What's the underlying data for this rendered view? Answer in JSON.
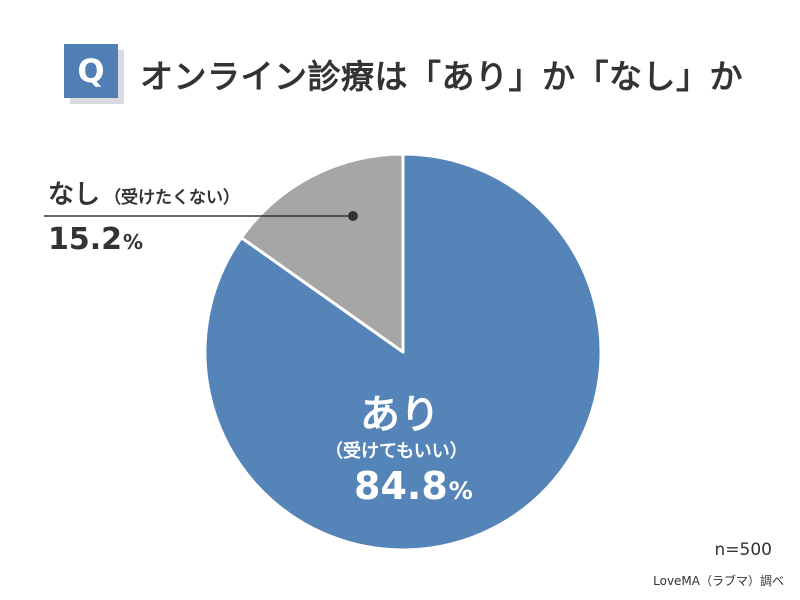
{
  "header": {
    "q_badge": "Q",
    "title": "オンライン診療は「あり」か「なし」か"
  },
  "chart_data": {
    "type": "pie",
    "categories": [
      "あり",
      "なし"
    ],
    "values": [
      84.8,
      15.2
    ],
    "title": "オンライン診療は「あり」か「なし」か",
    "colors": [
      "#5584b8",
      "#a6a6a6"
    ],
    "start_angle_deg": 0,
    "direction": "clockwise"
  },
  "labels": {
    "nashi_main": "なし",
    "nashi_sub": "（受けたくない）",
    "nashi_pct_value": "15.2",
    "ari_main": "あり",
    "ari_sub": "（受けてもいい）",
    "ari_pct_value": "84.8",
    "pct_sign": "%"
  },
  "footer": {
    "sample_size": "n=500",
    "source": "LoveMA（ラブマ）調べ"
  }
}
